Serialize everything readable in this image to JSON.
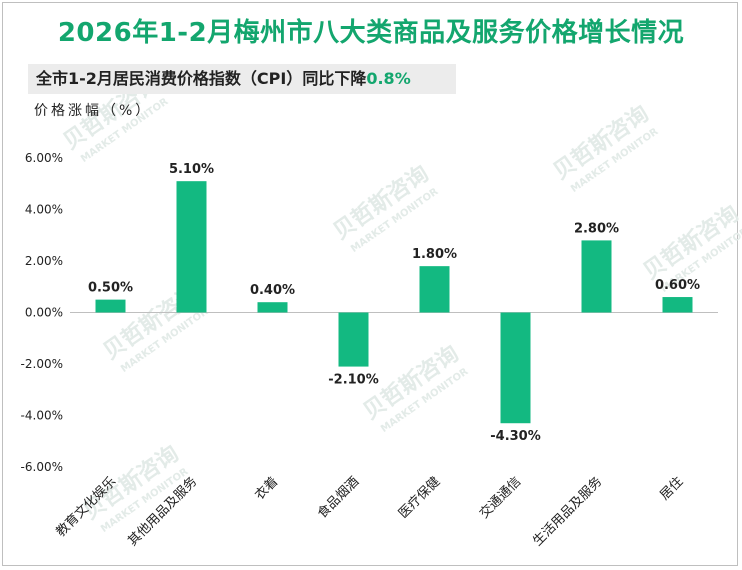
{
  "header": {
    "title": "2026年1-2月梅州市八大类商品及服务价格增长情况",
    "subtitle_prefix": "全市1-2月居民消费价格指数（CPI）同比下降",
    "subtitle_highlight": "0.8%"
  },
  "watermark": {
    "text": "贝哲斯咨询",
    "subtext": "MARKET MONITOR"
  },
  "colors": {
    "accent": "#13a66e",
    "bar": "#13b981",
    "text": "#222222"
  },
  "chart_data": {
    "type": "bar",
    "title": "2026年1-2月梅州市八大类商品及服务价格增长情况",
    "ylabel": "价格涨幅（%）",
    "xlabel": "",
    "categories": [
      "教育文化娱乐",
      "其他用品及服务",
      "衣着",
      "食品烟酒",
      "医疗保健",
      "交通通信",
      "生活用品及服务",
      "居住"
    ],
    "values": [
      0.5,
      5.1,
      0.4,
      -2.1,
      1.8,
      -4.3,
      2.8,
      0.6
    ],
    "data_labels": [
      "0.50%",
      "5.10%",
      "0.40%",
      "-2.10%",
      "1.80%",
      "-4.30%",
      "2.80%",
      "0.60%"
    ],
    "ylim": [
      -6,
      6
    ],
    "yticks": [
      6,
      4,
      2,
      0,
      -2,
      -4,
      -6
    ],
    "ytick_labels": [
      "6.00%",
      "4.00%",
      "2.00%",
      "0.00%",
      "-2.00%",
      "-4.00%",
      "-6.00%"
    ],
    "grid": false,
    "legend": "none"
  }
}
